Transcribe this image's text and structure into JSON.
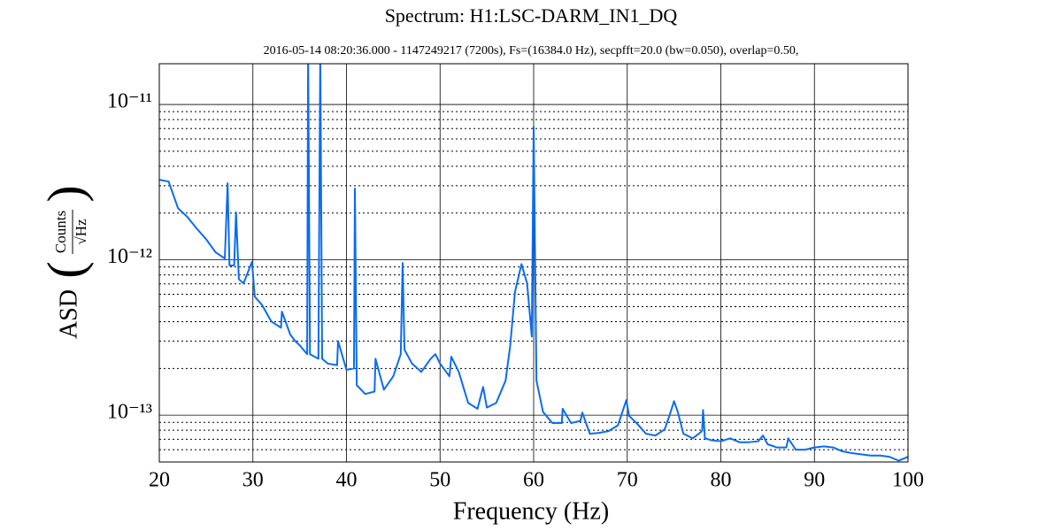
{
  "chart_data": {
    "type": "line",
    "title": "Spectrum: H1:LSC-DARM_IN1_DQ",
    "subtitle": "2016-05-14 08:20:36.000 - 1147249217 (7200s), Fs=(16384.0 Hz), secpfft=20.0 (bw=0.050), overlap=0.50,",
    "xlabel": "Frequency (Hz)",
    "ylabel": "ASD",
    "ylabel_numerator": "Counts",
    "ylabel_denominator": "√Hz",
    "xlim": [
      20,
      100
    ],
    "xticks": [
      20,
      30,
      40,
      50,
      60,
      70,
      80,
      90,
      100
    ],
    "ylim": [
      5e-14,
      1.83e-11
    ],
    "log_y": true,
    "grid": true,
    "yticks": [
      {
        "value": 1e-13,
        "label": "10⁻¹³"
      },
      {
        "value": 1e-12,
        "label": "10⁻¹²"
      },
      {
        "value": 1e-11,
        "label": "10⁻¹¹"
      }
    ],
    "yticks_minor": [
      6e-14,
      7e-14,
      8e-14,
      9e-14,
      2e-13,
      3e-13,
      4e-13,
      5e-13,
      6e-13,
      7e-13,
      8e-13,
      9e-13,
      2e-12,
      3e-12,
      4e-12,
      5e-12,
      6e-12,
      7e-12,
      8e-12,
      9e-12
    ],
    "series": [
      {
        "name": "H1:LSC-DARM_IN1_DQ",
        "color": "#0a6cf0",
        "x": [
          20,
          21,
          22,
          23,
          24,
          25,
          26,
          27,
          27.3,
          27.5,
          28,
          28.2,
          28.5,
          29,
          29.9,
          30.2,
          31,
          31.8,
          32,
          33,
          33.1,
          34,
          34.5,
          35,
          35.8,
          35.9,
          36.1,
          37,
          37.2,
          37.4,
          38,
          39,
          39.1,
          40,
          40.8,
          40.9,
          41.1,
          42,
          43,
          43.1,
          44,
          45,
          45.8,
          46,
          46.2,
          47,
          48,
          49,
          49.5,
          50,
          51,
          51.2,
          52,
          53,
          54,
          54.6,
          55,
          56,
          57,
          57.5,
          58,
          58.7,
          59.3,
          59.8,
          60,
          60.3,
          61,
          62,
          63,
          63.1,
          64,
          65,
          65.2,
          66,
          67,
          68,
          69,
          69.9,
          70.2,
          71,
          72,
          73,
          74,
          74.5,
          75,
          75.4,
          76,
          77,
          78,
          78.1,
          78.3,
          79,
          80,
          81,
          82,
          83,
          84,
          84.5,
          85,
          86,
          87,
          87.2,
          88,
          89,
          90,
          91,
          92,
          93,
          94,
          95,
          96,
          97,
          98,
          99,
          100
        ],
        "values": [
          3.28e-12,
          3.19e-12,
          2.15e-12,
          1.89e-12,
          1.59e-12,
          1.36e-12,
          1.12e-12,
          1.02e-12,
          3.11e-12,
          9.2e-13,
          9.2e-13,
          2.02e-12,
          7.5e-13,
          7.06e-13,
          9.7e-13,
          5.8e-13,
          5.1e-13,
          4.18e-13,
          4e-13,
          3.66e-13,
          4.64e-13,
          3.3e-13,
          3.01e-13,
          2.82e-13,
          2.47e-13,
          2.2e-11,
          2.47e-13,
          2.31e-13,
          2.2e-11,
          2.31e-13,
          2.15e-13,
          2.1e-13,
          3e-13,
          1.96e-13,
          2e-13,
          2.88e-12,
          1.56e-13,
          1.37e-13,
          1.42e-13,
          2.31e-13,
          1.46e-13,
          1.78e-13,
          2.47e-13,
          9.55e-13,
          2.64e-13,
          2.15e-13,
          1.9e-13,
          2.31e-13,
          2.47e-13,
          2.15e-13,
          1.78e-13,
          2.38e-13,
          1.9e-13,
          1.2e-13,
          1.1e-13,
          1.52e-13,
          1.12e-13,
          1.2e-13,
          1.67e-13,
          2.82e-13,
          6.2e-13,
          9.4e-13,
          7.06e-13,
          3.21e-13,
          7.2e-12,
          1.67e-13,
          1.05e-13,
          8.9e-14,
          8.9e-14,
          1.1e-13,
          8.9e-14,
          9.2e-14,
          1.04e-13,
          7.6e-14,
          7.7e-14,
          7.9e-14,
          8.6e-14,
          1.25e-13,
          9.9e-14,
          8.9e-14,
          7.6e-14,
          7.4e-14,
          8.1e-14,
          9.9e-14,
          1.23e-13,
          1.05e-13,
          7.6e-14,
          7.1e-14,
          7.9e-14,
          1.08e-13,
          7.1e-14,
          6.9e-14,
          6.8e-14,
          7.1e-14,
          6.7e-14,
          6.7e-14,
          6.8e-14,
          7.4e-14,
          6.5e-14,
          6.2e-14,
          6.2e-14,
          7.1e-14,
          6e-14,
          6e-14,
          6.2e-14,
          6.3e-14,
          6.2e-14,
          5.85e-14,
          5.7e-14,
          5.6e-14,
          5.5e-14,
          5.5e-14,
          5.4e-14,
          5.1e-14,
          5.4e-14
        ]
      }
    ]
  }
}
